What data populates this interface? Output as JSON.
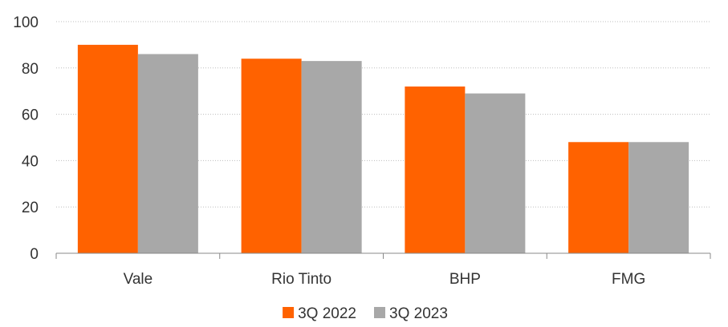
{
  "chart_data": {
    "type": "bar",
    "categories": [
      "Vale",
      "Rio Tinto",
      "BHP",
      "FMG"
    ],
    "series": [
      {
        "name": "3Q 2022",
        "color": "#FF6200",
        "values": [
          90,
          84,
          72,
          48
        ]
      },
      {
        "name": "3Q 2023",
        "color": "#A8A8A8",
        "values": [
          86,
          83,
          69,
          48
        ]
      }
    ],
    "ylim": [
      0,
      100
    ],
    "yticks": [
      0,
      20,
      40,
      60,
      80,
      100
    ],
    "grid": "dotted-horizontal",
    "legend_position": "bottom"
  }
}
